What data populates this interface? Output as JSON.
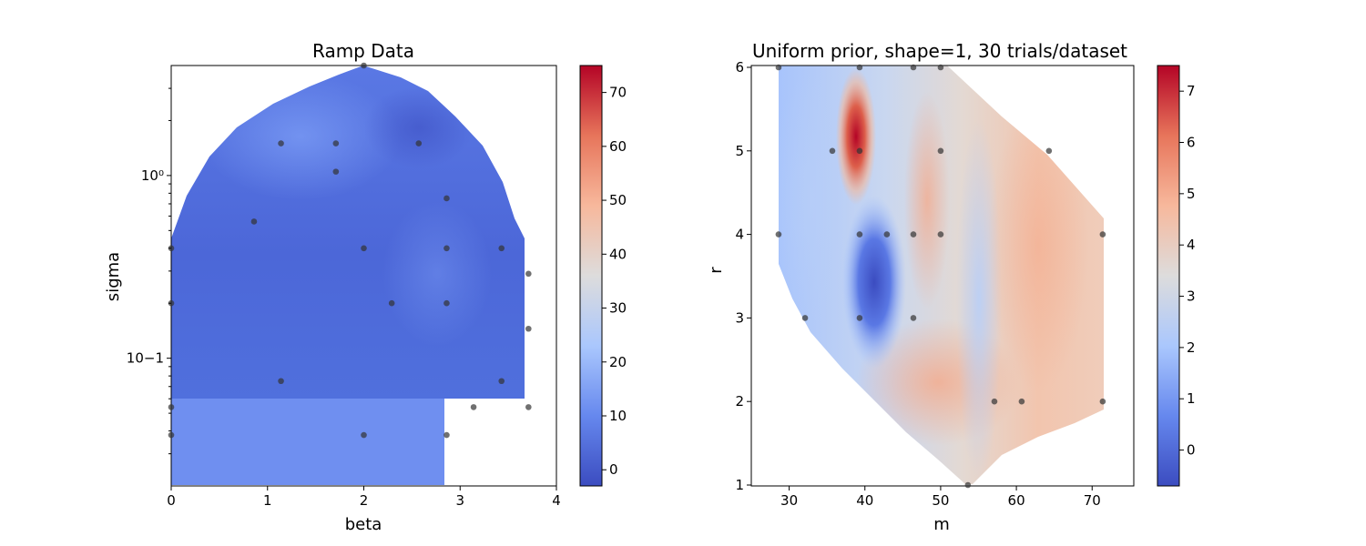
{
  "colormap": [
    "#3b4cc0",
    "#6688ee",
    "#aac7fd",
    "#dddcdc",
    "#f7b89c",
    "#e7755b",
    "#b40426"
  ],
  "chart_data": [
    {
      "type": "heatmap",
      "title": "Ramp Data",
      "xlabel": "beta",
      "ylabel": "sigma",
      "xlim": [
        0,
        4
      ],
      "ylim": [
        0.02,
        4
      ],
      "y_scale": "log",
      "x_ticks": [
        0,
        1,
        2,
        3,
        4
      ],
      "x_tick_labels": [
        "0",
        "1",
        "2",
        "3",
        "4"
      ],
      "y_ticks": [
        0.1,
        1
      ],
      "y_tick_labels": [
        "10−1",
        "10⁰"
      ],
      "colorbar": {
        "min": -3,
        "max": 75,
        "ticks": [
          0,
          10,
          20,
          30,
          40,
          50,
          60,
          70
        ],
        "tick_labels": [
          "0",
          "10",
          "20",
          "30",
          "40",
          "50",
          "60",
          "70"
        ]
      },
      "points": [
        {
          "x": 2.0,
          "y": 4.0
        },
        {
          "x": 1.14,
          "y": 1.5
        },
        {
          "x": 1.71,
          "y": 1.5
        },
        {
          "x": 2.57,
          "y": 1.5
        },
        {
          "x": 1.71,
          "y": 1.05
        },
        {
          "x": 2.86,
          "y": 0.75
        },
        {
          "x": 0.86,
          "y": 0.56
        },
        {
          "x": 0.0,
          "y": 0.4
        },
        {
          "x": 2.0,
          "y": 0.4
        },
        {
          "x": 2.86,
          "y": 0.4
        },
        {
          "x": 3.43,
          "y": 0.4
        },
        {
          "x": 3.71,
          "y": 0.29
        },
        {
          "x": 0.0,
          "y": 0.2
        },
        {
          "x": 2.29,
          "y": 0.2
        },
        {
          "x": 2.86,
          "y": 0.2
        },
        {
          "x": 3.71,
          "y": 0.145
        },
        {
          "x": 1.14,
          "y": 0.075
        },
        {
          "x": 3.43,
          "y": 0.075
        },
        {
          "x": 0.0,
          "y": 0.054
        },
        {
          "x": 3.14,
          "y": 0.054
        },
        {
          "x": 3.71,
          "y": 0.054
        },
        {
          "x": 0.0,
          "y": 0.038
        },
        {
          "x": 2.0,
          "y": 0.038
        },
        {
          "x": 2.86,
          "y": 0.038
        }
      ]
    },
    {
      "type": "heatmap",
      "title": "Uniform prior, shape=1, 30 trials/dataset",
      "xlabel": "m",
      "ylabel": "r",
      "xlim": [
        25,
        75.5
      ],
      "ylim": [
        1,
        6
      ],
      "x_ticks": [
        30,
        40,
        50,
        60,
        70
      ],
      "x_tick_labels": [
        "30",
        "40",
        "50",
        "60",
        "70"
      ],
      "y_ticks": [
        1,
        2,
        3,
        4,
        5,
        6
      ],
      "y_tick_labels": [
        "1",
        "2",
        "3",
        "4",
        "5",
        "6"
      ],
      "colorbar": {
        "min": -0.7,
        "max": 7.5,
        "ticks": [
          0,
          1,
          2,
          3,
          4,
          5,
          6,
          7
        ],
        "tick_labels": [
          "0",
          "1",
          "2",
          "3",
          "4",
          "5",
          "6",
          "7"
        ]
      },
      "points": [
        {
          "x": 28.6,
          "y": 6
        },
        {
          "x": 39.3,
          "y": 6
        },
        {
          "x": 46.4,
          "y": 6
        },
        {
          "x": 50.0,
          "y": 6
        },
        {
          "x": 35.7,
          "y": 5
        },
        {
          "x": 39.3,
          "y": 5
        },
        {
          "x": 50.0,
          "y": 5
        },
        {
          "x": 64.3,
          "y": 5
        },
        {
          "x": 28.6,
          "y": 4
        },
        {
          "x": 39.3,
          "y": 4
        },
        {
          "x": 42.9,
          "y": 4
        },
        {
          "x": 46.4,
          "y": 4
        },
        {
          "x": 50.0,
          "y": 4
        },
        {
          "x": 71.4,
          "y": 4
        },
        {
          "x": 32.1,
          "y": 3
        },
        {
          "x": 39.3,
          "y": 3
        },
        {
          "x": 46.4,
          "y": 3
        },
        {
          "x": 57.1,
          "y": 2
        },
        {
          "x": 60.7,
          "y": 2
        },
        {
          "x": 71.4,
          "y": 2
        },
        {
          "x": 53.6,
          "y": 1
        }
      ]
    }
  ]
}
